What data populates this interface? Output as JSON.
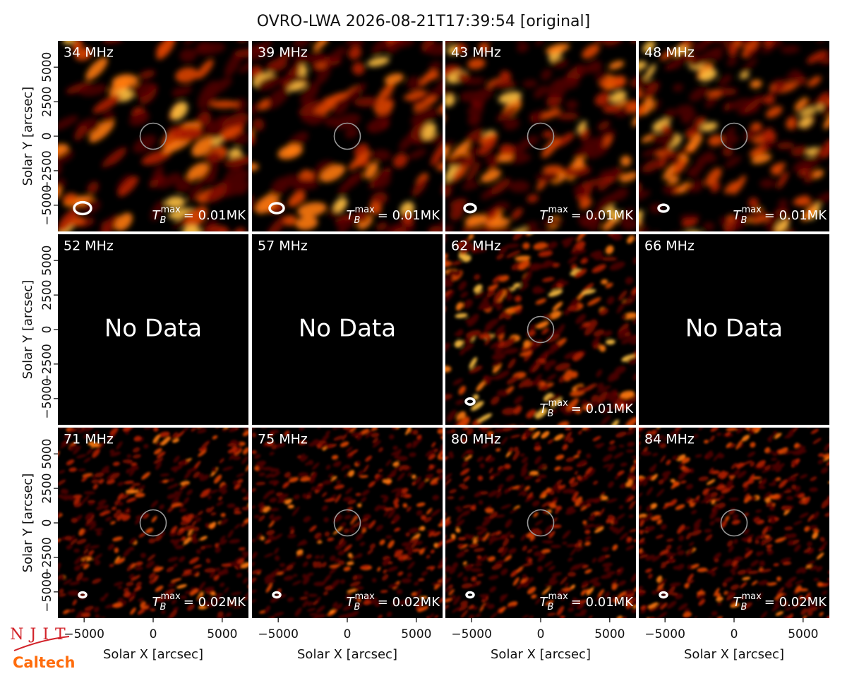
{
  "chart_data": {
    "type": "image-grid",
    "title": "OVRO-LWA 2026-08-21T17:39:54 [original]",
    "xlabel": "Solar X [arcsec]",
    "ylabel": "Solar Y [arcsec]",
    "xlim": [
      -6900,
      6900
    ],
    "ylim": [
      -6900,
      6900
    ],
    "xticks": [
      {
        "value": -5000,
        "label": "−5000"
      },
      0,
      5000
    ],
    "yticks": [
      {
        "value": -5000,
        "label": "−5000"
      },
      {
        "value": -2500,
        "label": "−2500"
      },
      0,
      2500,
      5000
    ],
    "no_data_label": "No Data",
    "tb_symbol": {
      "base": "T",
      "sub": "B",
      "sup": "max"
    },
    "panels": [
      {
        "label": "34 MHz",
        "tb_max": "= 0.01MK"
      },
      {
        "label": "39 MHz",
        "tb_max": "= 0.01MK"
      },
      {
        "label": "43 MHz",
        "tb_max": "= 0.01MK"
      },
      {
        "label": "48 MHz",
        "tb_max": "= 0.01MK"
      },
      {
        "label": "52 MHz",
        "no_data": true
      },
      {
        "label": "57 MHz",
        "no_data": true
      },
      {
        "label": "62 MHz",
        "tb_max": "= 0.01MK"
      },
      {
        "label": "66 MHz",
        "no_data": true
      },
      {
        "label": "71 MHz",
        "tb_max": "= 0.02MK"
      },
      {
        "label": "75 MHz",
        "tb_max": "= 0.02MK"
      },
      {
        "label": "80 MHz",
        "tb_max": "= 0.01MK"
      },
      {
        "label": "84 MHz",
        "tb_max": "= 0.02MK"
      }
    ]
  },
  "logos": {
    "top": "NJIT",
    "bottom": "Caltech"
  }
}
